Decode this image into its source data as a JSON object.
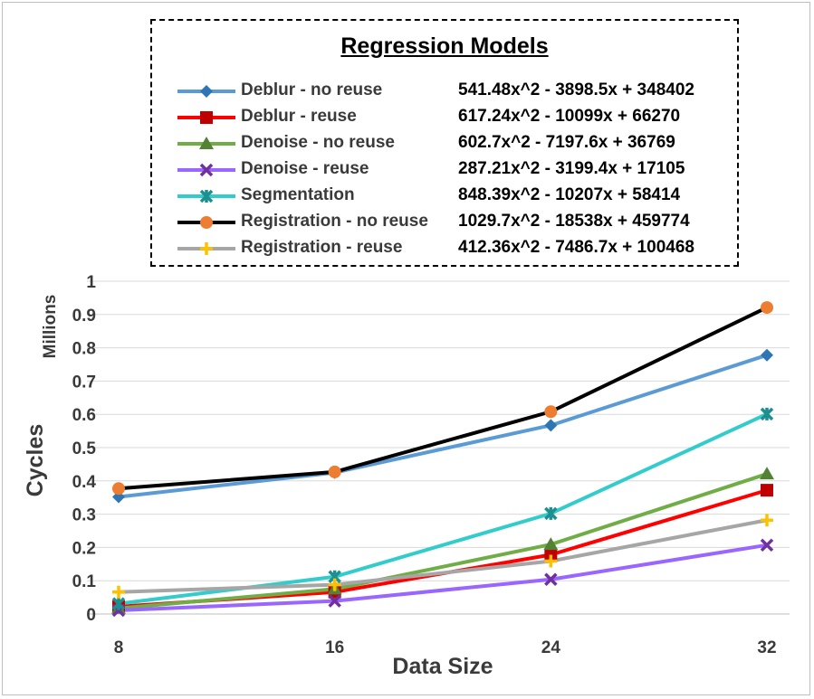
{
  "chart_data": {
    "type": "line",
    "title": "",
    "xlabel": "Data Size",
    "ylabel": "Cycles",
    "y_unit_label": "Millions",
    "categories": [
      "8",
      "16",
      "24",
      "32"
    ],
    "ylim": [
      0,
      1
    ],
    "yticks": [
      "0",
      "0.1",
      "0.2",
      "0.3",
      "0.4",
      "0.5",
      "0.6",
      "0.7",
      "0.8",
      "0.9",
      "1"
    ],
    "grid": true,
    "legend_title": "Regression Models",
    "legend_position": "top",
    "series": [
      {
        "name": "Deblur - no reuse",
        "equation": "541.48x^2 - 3898.5x + 348402",
        "color": "#5b9bd5",
        "marker": "diamond",
        "marker_color": "#2e75b6",
        "values": [
          0.352,
          0.425,
          0.567,
          0.778
        ]
      },
      {
        "name": "Deblur - reuse",
        "equation": "617.24x^2 - 10099x + 66270",
        "color": "#ff0000",
        "marker": "square",
        "marker_color": "#c00000",
        "values": [
          0.022,
          0.066,
          0.178,
          0.372
        ]
      },
      {
        "name": "Denoise - no reuse",
        "equation": "602.7x^2 - 7197.6x + 36769",
        "color": "#70ad47",
        "marker": "triangle",
        "marker_color": "#548235",
        "values": [
          0.017,
          0.075,
          0.209,
          0.421
        ]
      },
      {
        "name": "Denoise - reuse",
        "equation": "287.21x^2 - 3199.4x + 17105",
        "color": "#9966ff",
        "marker": "x",
        "marker_color": "#7030a0",
        "values": [
          0.011,
          0.039,
          0.104,
          0.207
        ]
      },
      {
        "name": "Segmentation",
        "equation": "848.39x^2 - 10207x + 58414",
        "color": "#33cccc",
        "marker": "star",
        "marker_color": "#1e8f8f",
        "values": [
          0.031,
          0.112,
          0.302,
          0.601
        ]
      },
      {
        "name": "Registration - no reuse",
        "equation": "1029.7x^2 - 18538x + 459774",
        "color": "#000000",
        "marker": "circle",
        "marker_color": "#ed7d31",
        "values": [
          0.377,
          0.427,
          0.608,
          0.921
        ]
      },
      {
        "name": "Registration - reuse",
        "equation": "412.36x^2 - 7486.7x + 100468",
        "color": "#a6a6a6",
        "marker": "plus",
        "marker_color": "#ffc000",
        "values": [
          0.066,
          0.088,
          0.159,
          0.282
        ]
      }
    ]
  }
}
